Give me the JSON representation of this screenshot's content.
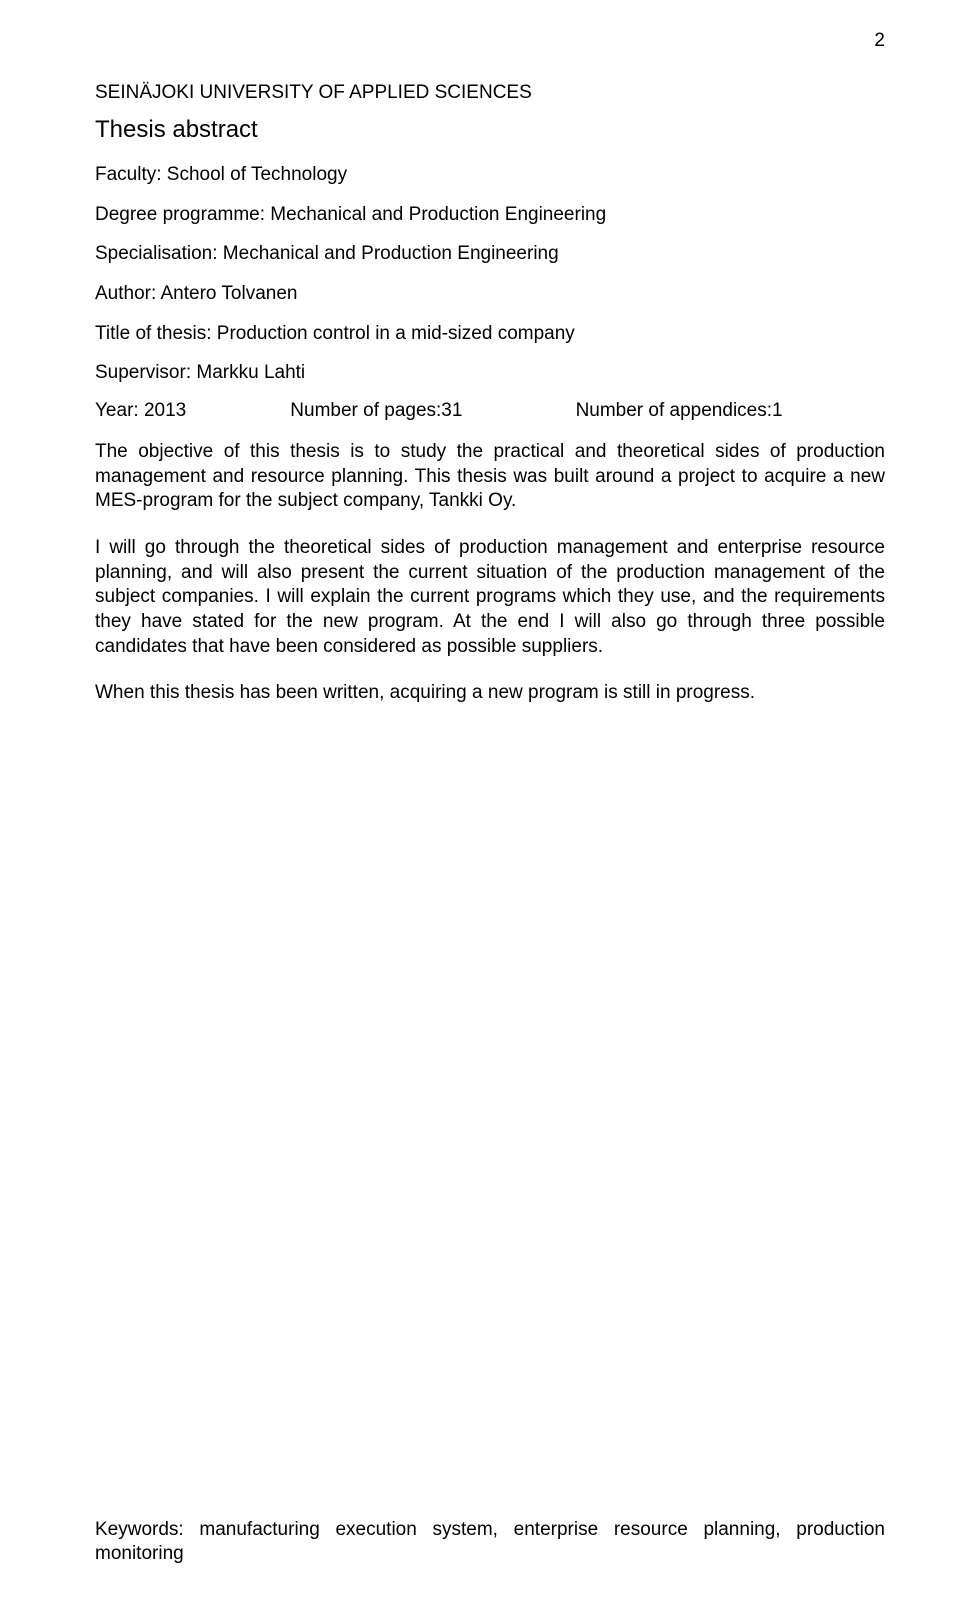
{
  "page_number": "2",
  "header_institution": "SEINÄJOKI UNIVERSITY OF APPLIED SCIENCES",
  "header_subtitle": "Thesis abstract",
  "faculty_line": "Faculty: School of Technology",
  "degree_line": "Degree programme: Mechanical and Production Engineering",
  "specialisation_line": "Specialisation: Mechanical and Production Engineering",
  "author_line": "Author: Antero Tolvanen",
  "title_line": "Title of thesis: Production control in a mid-sized company",
  "supervisor_line": "Supervisor: Markku Lahti",
  "year_label": "Year: 2013",
  "pages_label": "Number of pages:31",
  "appendices_label": "Number of appendices:1",
  "para1": "The objective of this thesis is to study the practical and theoretical sides of production management and resource planning. This thesis was built around a project to acquire a new MES-program for the subject company, Tankki Oy.",
  "para2": "I will go through the theoretical sides of production management and enterprise resource planning, and will also present the current situation of the production management of the subject companies. I will explain the current programs which they use, and the requirements they have stated for the new program. At the end I will also go through three possible candidates that have been considered as possible suppliers.",
  "para3": "When this thesis has been written, acquiring a new program is still in progress.",
  "keywords_line": "Keywords: manufacturing execution system, enterprise resource planning, production monitoring"
}
